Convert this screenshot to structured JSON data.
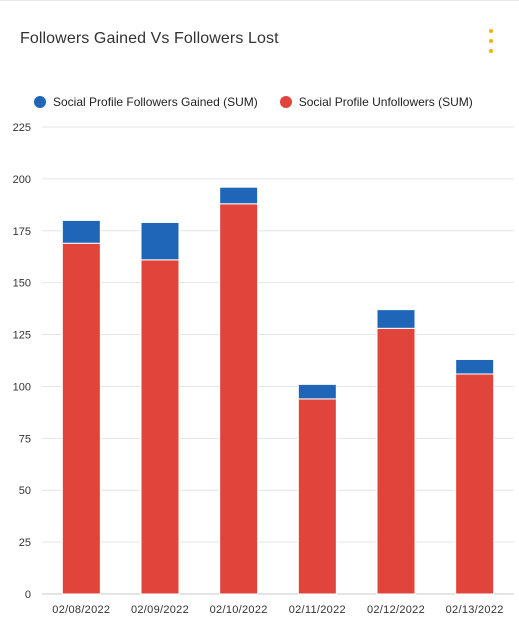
{
  "card": {
    "title": "Followers Gained Vs Followers Lost",
    "menu_icon": "vertical-ellipsis-icon",
    "menu_color": "#f5b400"
  },
  "chart_data": {
    "type": "bar",
    "stacked": true,
    "title": "Followers Gained Vs Followers Lost",
    "xlabel": "",
    "ylabel": "",
    "ylim": [
      0,
      225
    ],
    "yticks": [
      "0",
      "25",
      "50",
      "75",
      "100",
      "125",
      "150",
      "175",
      "200",
      "225"
    ],
    "categories": [
      "02/08/2022",
      "02/09/2022",
      "02/10/2022",
      "02/11/2022",
      "02/12/2022",
      "02/13/2022"
    ],
    "series": [
      {
        "name": "Social Profile Unfollowers (SUM)",
        "color": "#e0443a",
        "values": [
          169,
          161,
          188,
          94,
          128,
          106
        ]
      },
      {
        "name": "Social Profile Followers Gained (SUM)",
        "color": "#1f66b8",
        "values": [
          11,
          18,
          8,
          7,
          9,
          7
        ]
      }
    ],
    "legend": {
      "position": "top-left",
      "items": [
        {
          "label": "Social Profile Followers Gained (SUM)",
          "color": "#1f66b8"
        },
        {
          "label": "Social Profile Unfollowers (SUM)",
          "color": "#e0443a"
        }
      ]
    },
    "grid": true
  }
}
